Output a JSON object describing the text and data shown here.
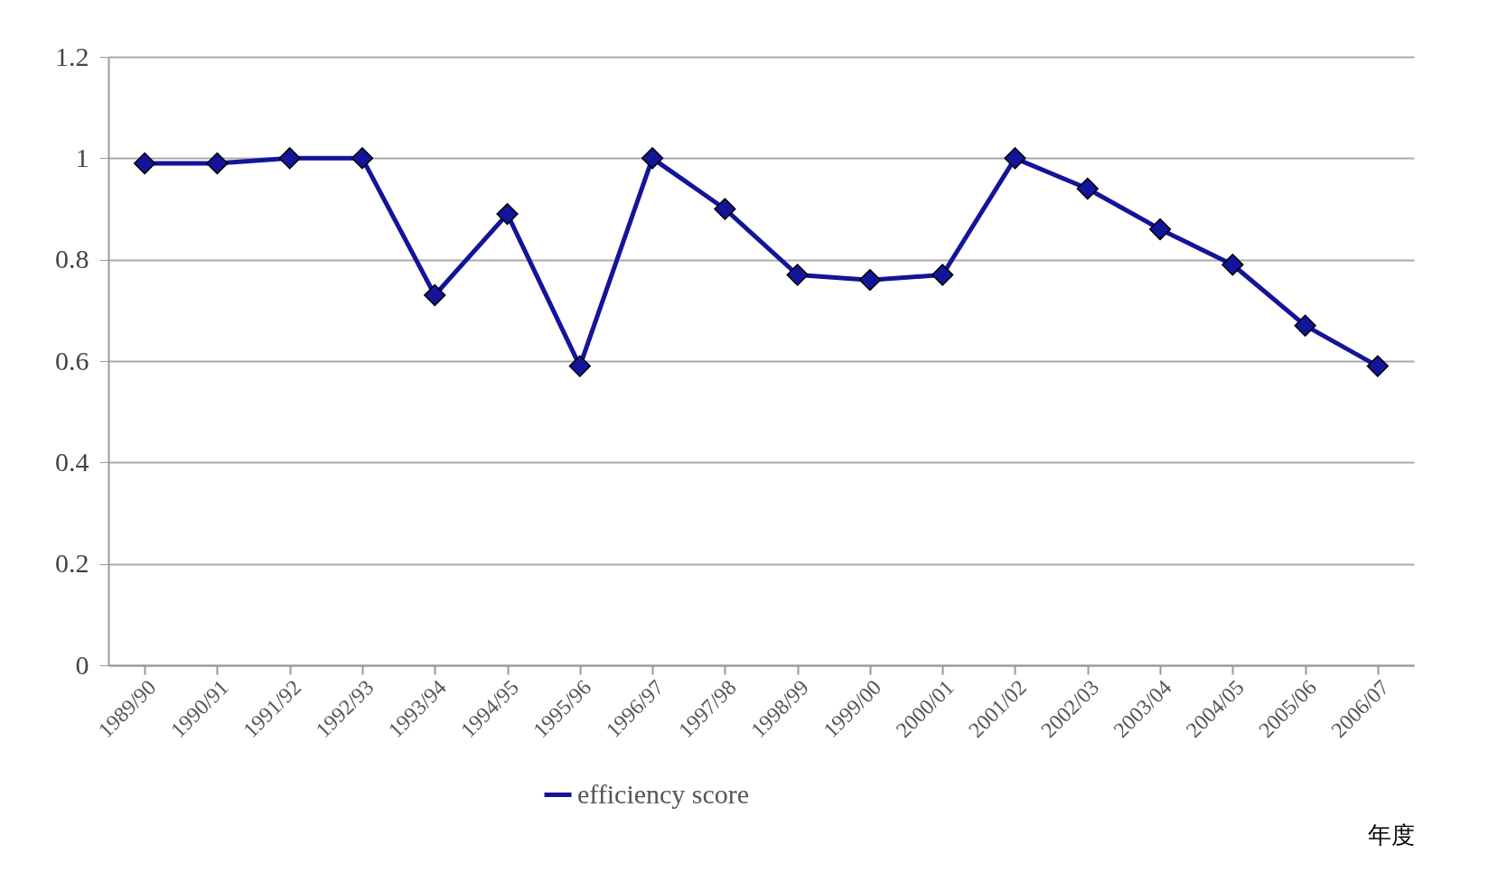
{
  "chart_data": {
    "type": "line",
    "xlabel": "年度",
    "categories": [
      "1989/90",
      "1990/91",
      "1991/92",
      "1992/93",
      "1993/94",
      "1994/95",
      "1995/96",
      "1996/97",
      "1997/98",
      "1998/99",
      "1999/00",
      "2000/01",
      "2001/02",
      "2002/03",
      "2003/04",
      "2004/05",
      "2005/06",
      "2006/07"
    ],
    "series": [
      {
        "name": "efficiency score",
        "color": "#14149a",
        "values": [
          0.99,
          0.99,
          1.0,
          1.0,
          0.73,
          0.89,
          0.59,
          1.0,
          0.9,
          0.77,
          0.76,
          0.77,
          1.0,
          0.94,
          0.86,
          0.79,
          0.67,
          0.59
        ]
      }
    ],
    "ylim": [
      0,
      1.2
    ],
    "yticks": [
      0,
      0.2,
      0.4,
      0.6,
      0.8,
      1,
      1.2
    ],
    "grid": "y",
    "legend": "bottom",
    "marker": "diamond"
  }
}
